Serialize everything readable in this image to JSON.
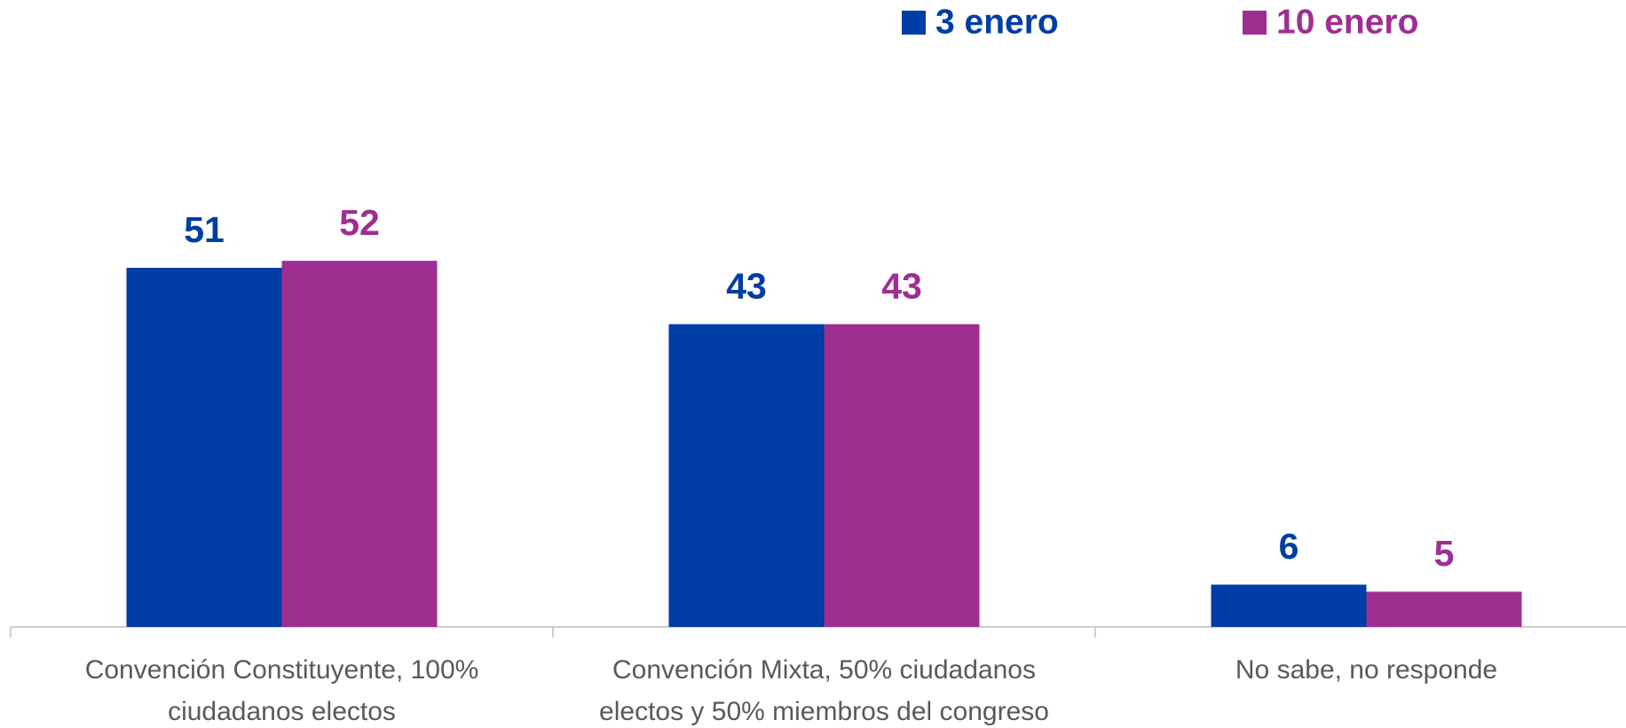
{
  "chart_data": {
    "type": "bar",
    "categories": [
      "Convención Constituyente, 100% ciudadanos electos",
      "Convención Mixta, 50% ciudadanos electos y 50% miembros del congreso",
      "No sabe, no responde"
    ],
    "series": [
      {
        "name": "3 enero",
        "color": "#003DA5",
        "values": [
          51,
          43,
          6
        ]
      },
      {
        "name": "10 enero",
        "color": "#9E2F91",
        "values": [
          52,
          43,
          5
        ]
      }
    ],
    "legend": "top-right"
  }
}
